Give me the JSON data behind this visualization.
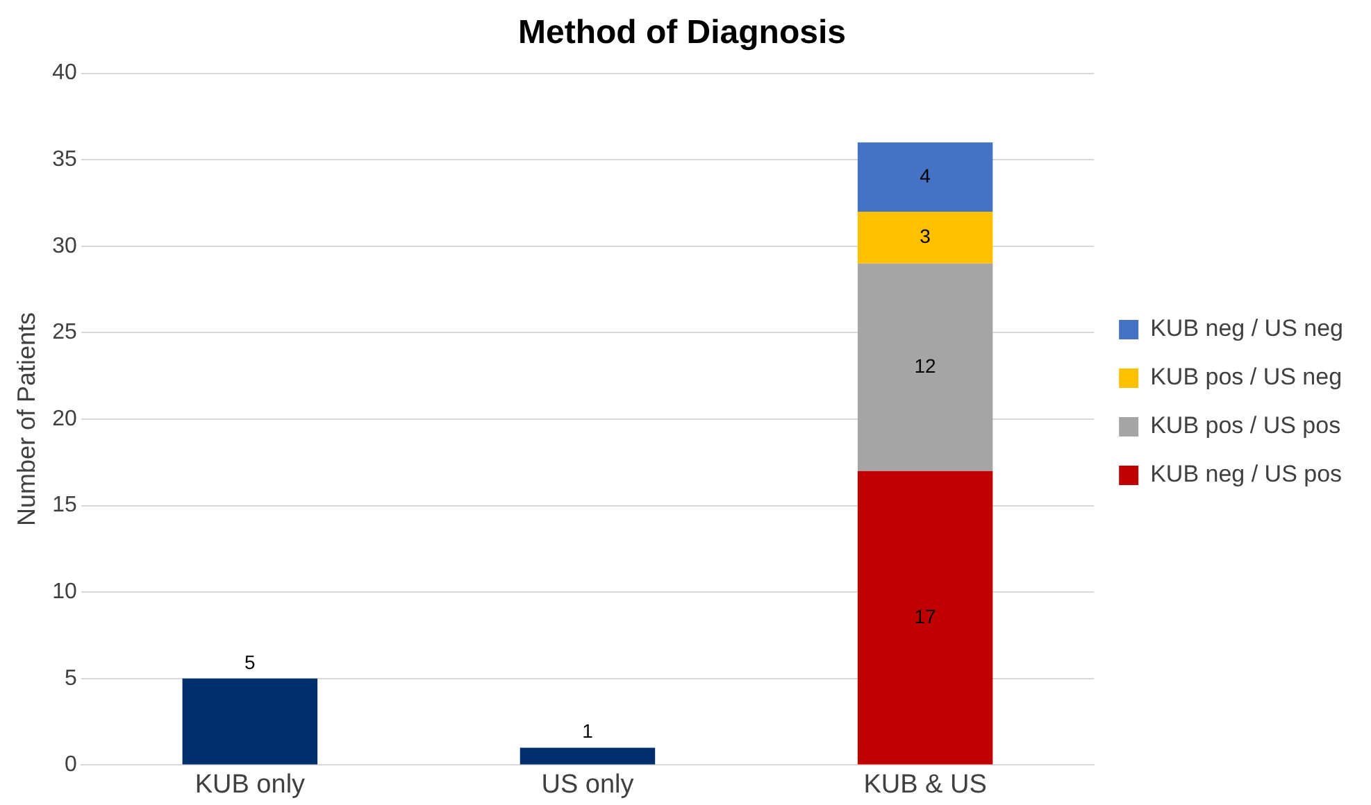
{
  "chart_data": {
    "type": "bar",
    "title": "Method of Diagnosis",
    "ylabel": "Number of Patients",
    "categories": [
      "KUB only",
      "US only",
      "KUB & US"
    ],
    "stacked": true,
    "series": [
      {
        "color": "#002f6c",
        "values": [
          5,
          1,
          null
        ]
      },
      {
        "name": "KUB neg / US pos",
        "color": "#c00000",
        "values": [
          null,
          null,
          17
        ]
      },
      {
        "name": "KUB pos / US pos",
        "color": "#a5a5a5",
        "values": [
          null,
          null,
          12
        ]
      },
      {
        "name": "KUB pos / US neg",
        "color": "#ffc000",
        "values": [
          null,
          null,
          3
        ]
      },
      {
        "name": "KUB neg / US neg",
        "color": "#4472c4",
        "values": [
          null,
          null,
          4
        ]
      }
    ],
    "ylim": [
      0,
      40
    ],
    "yticks": [
      0,
      5,
      10,
      15,
      20,
      25,
      30,
      35,
      40
    ],
    "grid": "y",
    "legend": "right",
    "data_labels": true
  }
}
